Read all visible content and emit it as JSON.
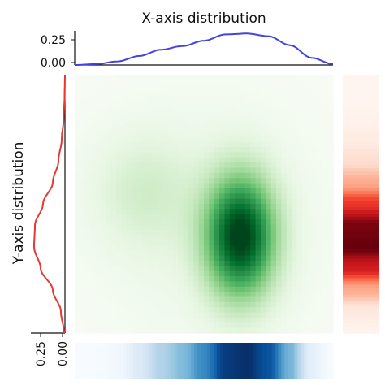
{
  "chart_data": {
    "type": "heatmap",
    "colormap": "Greens",
    "grid": false,
    "joint_density": {
      "x_range": [
        -3,
        3
      ],
      "y_range": [
        -3,
        3
      ],
      "peak_x": 0.85,
      "peak_y": -0.75,
      "secondary_x": -1.4,
      "secondary_y": 0.3
    },
    "top_marginal": {
      "title": "X-axis distribution",
      "color": "#4444dd",
      "ylim": [
        0,
        0.38
      ],
      "yticks": [
        "0.25",
        "0.00"
      ],
      "x": [
        -3,
        -2.5,
        -2,
        -1.5,
        -1,
        -0.5,
        0,
        0.5,
        1,
        1.5,
        2,
        2.5,
        3
      ],
      "density": [
        0.0,
        0.01,
        0.04,
        0.1,
        0.17,
        0.21,
        0.27,
        0.34,
        0.35,
        0.32,
        0.22,
        0.08,
        0.01
      ]
    },
    "left_marginal": {
      "title": "Y-axis distribution",
      "color": "#e53935",
      "xlim": [
        0,
        0.42
      ],
      "xticks": [
        "0.25",
        "0.00"
      ],
      "y": [
        -3,
        -2.5,
        -2,
        -1.5,
        -1,
        -0.5,
        0,
        0.5,
        1,
        1.5,
        2,
        2.5,
        3
      ],
      "density": [
        0.01,
        0.05,
        0.15,
        0.3,
        0.38,
        0.37,
        0.27,
        0.15,
        0.08,
        0.04,
        0.015,
        0.005,
        0.0
      ]
    },
    "right_strip": {
      "colormap": "Reds"
    },
    "bottom_strip": {
      "colormap": "Blues"
    }
  }
}
